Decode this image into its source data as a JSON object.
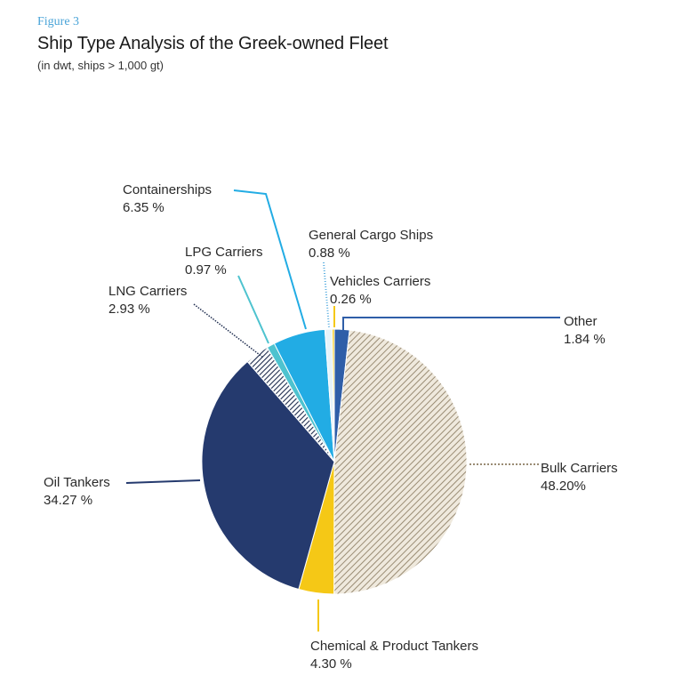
{
  "header": {
    "figure_label": "Figure 3",
    "title": "Ship Type Analysis of the Greek-owned Fleet",
    "subtitle": "(in dwt, ships > 1,000 gt)"
  },
  "chart_data": {
    "type": "pie",
    "title": "Ship Type Analysis of the Greek-owned Fleet",
    "subtitle": "(in dwt, ships > 1,000 gt)",
    "unit": "%",
    "start_angle_deg": 0,
    "direction": "clockwise",
    "slices": [
      {
        "name": "Other",
        "value": 1.84,
        "value_label": "1.84 %",
        "color": "#2f5ea8",
        "pattern": "solid"
      },
      {
        "name": "Bulk Carriers",
        "value": 48.2,
        "value_label": "48.20%",
        "color": "#a69a85",
        "pattern": "hatch"
      },
      {
        "name": "Chemical & Product Tankers",
        "value": 4.3,
        "value_label": "4.30 %",
        "color": "#f5c816",
        "pattern": "solid"
      },
      {
        "name": "Oil Tankers",
        "value": 34.27,
        "value_label": "34.27 %",
        "color": "#253a6e",
        "pattern": "solid"
      },
      {
        "name": "LNG Carriers",
        "value": 2.93,
        "value_label": "2.93 %",
        "color": "#1f2d4f",
        "pattern": "stripes"
      },
      {
        "name": "LPG Carriers",
        "value": 0.97,
        "value_label": "0.97 %",
        "color": "#4ec3cf",
        "pattern": "solid"
      },
      {
        "name": "Containerships",
        "value": 6.35,
        "value_label": "6.35 %",
        "color": "#22ace4",
        "pattern": "solid"
      },
      {
        "name": "General Cargo Ships",
        "value": 0.88,
        "value_label": "0.88 %",
        "color": "#e6f3fa",
        "pattern": "solid"
      },
      {
        "name": "Vehicles Carriers",
        "value": 0.26,
        "value_label": "0.26 %",
        "color": "#f5c816",
        "pattern": "solid"
      }
    ]
  }
}
